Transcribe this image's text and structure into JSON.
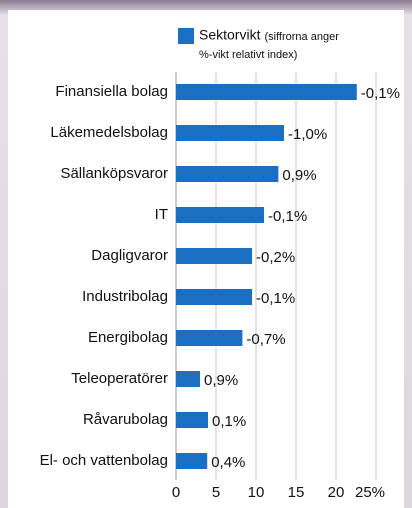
{
  "chart_data": {
    "type": "barh",
    "categories": [
      "Finansiella bolag",
      "Läkemedelsbolag",
      "Sällanköpsvaror",
      "IT",
      "Dagligvaror",
      "Industribolag",
      "Energibolag",
      "Teleoperatörer",
      "Råvarubolag",
      "El- och vattenbolag"
    ],
    "series": [
      {
        "name": "Sektorvikt",
        "color": "#1a6fc2",
        "values": [
          22.6,
          13.5,
          12.8,
          11,
          9.5,
          9.5,
          8.3,
          3,
          4,
          3.9
        ]
      }
    ],
    "legend_note": [
      "(siffrorna anger",
      "%-vikt relativt index)"
    ],
    "relative_weights": [
      "-0,1%",
      "-1,0%",
      "0,9%",
      "-0,1%",
      "-0,2%",
      "-0,1%",
      "-0,7%",
      "0,9%",
      "0,1%",
      "0,4%"
    ],
    "xlim": [
      0,
      25
    ],
    "xticks": [
      0,
      5,
      10,
      15,
      20,
      {
        "value": 25,
        "label": "25%"
      }
    ],
    "grid": true,
    "legend": "top"
  }
}
